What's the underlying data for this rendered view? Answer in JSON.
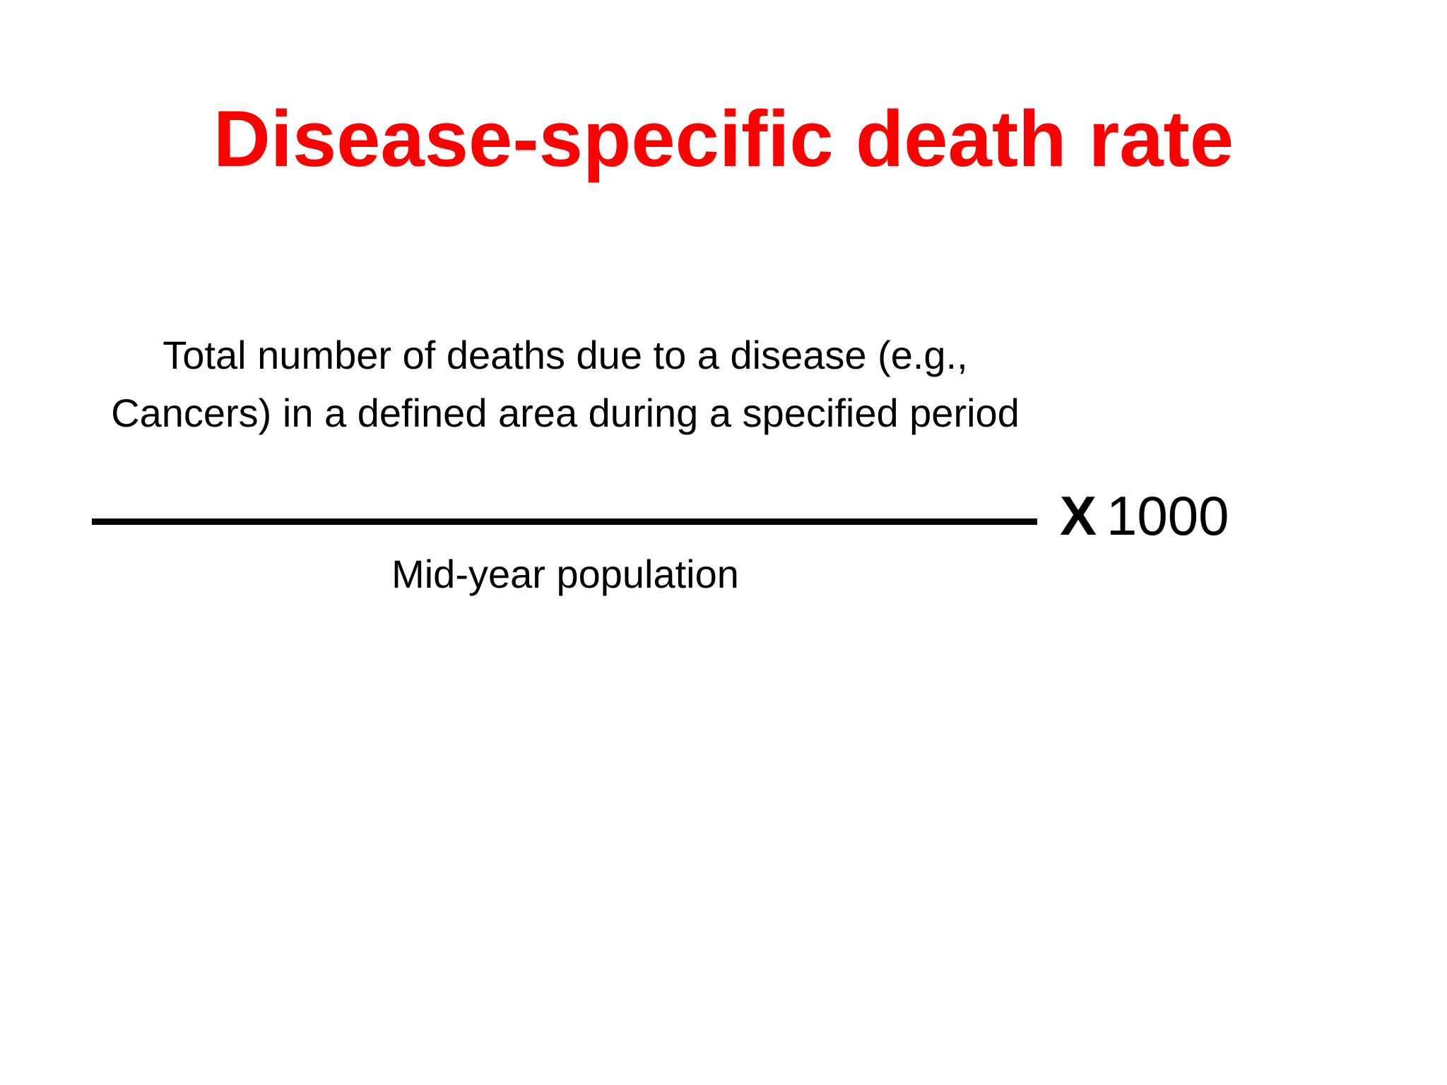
{
  "slide": {
    "title": "Disease-specific death rate",
    "title_color": "#ff0000",
    "formula": {
      "numerator": "Total number of deaths due to a disease (e.g., Cancers) in a defined area during a specified period",
      "denominator": "Mid-year population",
      "multiplier_sign": "X",
      "multiplier_value": "1000"
    }
  }
}
